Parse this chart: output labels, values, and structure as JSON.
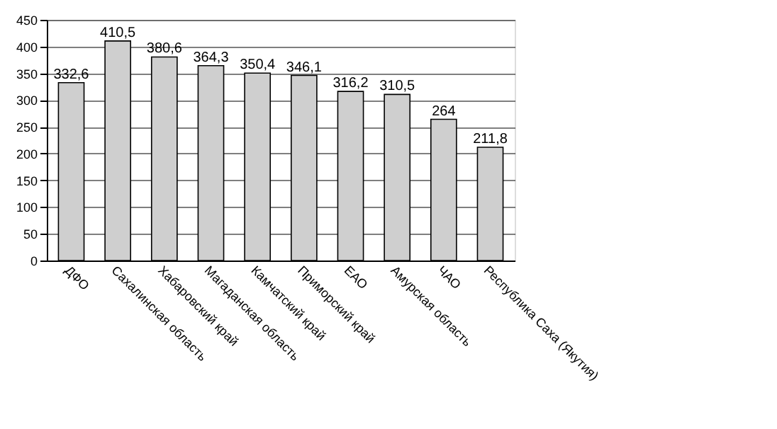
{
  "chart_data": {
    "type": "bar",
    "categories": [
      "ДФО",
      "Сахалинская область",
      "Хабаровский край",
      "Магаданская область",
      "Камчатский край",
      "Приморский край",
      "ЕАО",
      "Амурская область",
      "ЧАО",
      "Республика Саха (Якутия)"
    ],
    "values": [
      332.6,
      410.5,
      380.6,
      364.3,
      350.4,
      346.1,
      316.2,
      310.5,
      264,
      211.8
    ],
    "value_labels": [
      "332,6",
      "410,5",
      "380,6",
      "364,3",
      "350,4",
      "346,1",
      "316,2",
      "310,5",
      "264",
      "211,8"
    ],
    "color": "#cfcfcf",
    "ylim": [
      0,
      450
    ],
    "yticks": [
      0,
      50,
      100,
      150,
      200,
      250,
      300,
      350,
      400,
      450
    ],
    "grid": "y"
  }
}
